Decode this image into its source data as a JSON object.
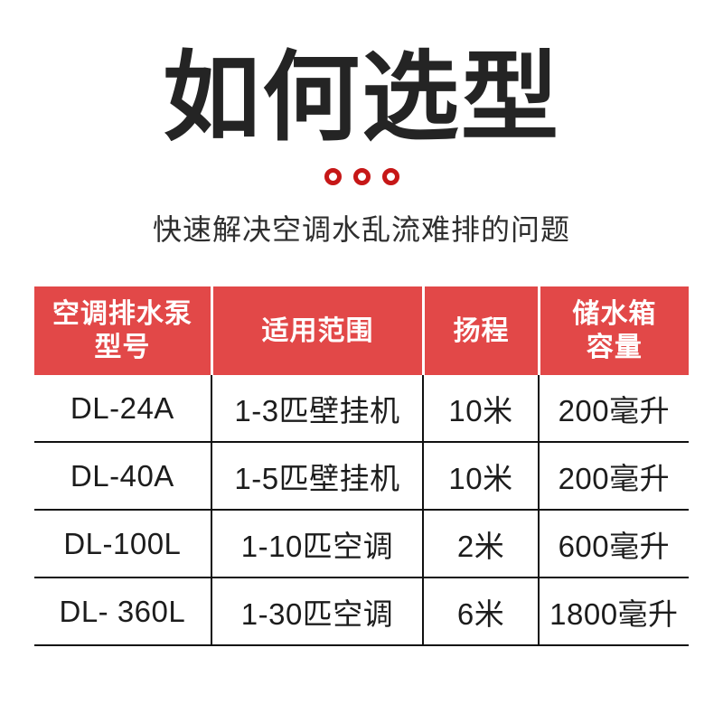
{
  "page": {
    "title": "如何选型",
    "subtitle": "快速解决空调水乱流难排的问题"
  },
  "decor": {
    "dot_count": 3,
    "dot_color": "#c61717"
  },
  "colors": {
    "header_bg": "#e24848",
    "header_text": "#ffffff",
    "body_text": "#1c1c1c",
    "border": "#111111"
  },
  "table": {
    "headers": [
      "空调排水泵\n型号",
      "适用范围",
      "扬程",
      "储水箱\n容量"
    ],
    "rows": [
      [
        "DL-24A",
        "1-3匹壁挂机",
        "10米",
        "200毫升"
      ],
      [
        "DL-40A",
        "1-5匹壁挂机",
        "10米",
        "200毫升"
      ],
      [
        "DL-100L",
        "1-10匹空调",
        "2米",
        "600毫升"
      ],
      [
        "DL- 360L",
        "1-30匹空调",
        "6米",
        "1800毫升"
      ]
    ]
  }
}
